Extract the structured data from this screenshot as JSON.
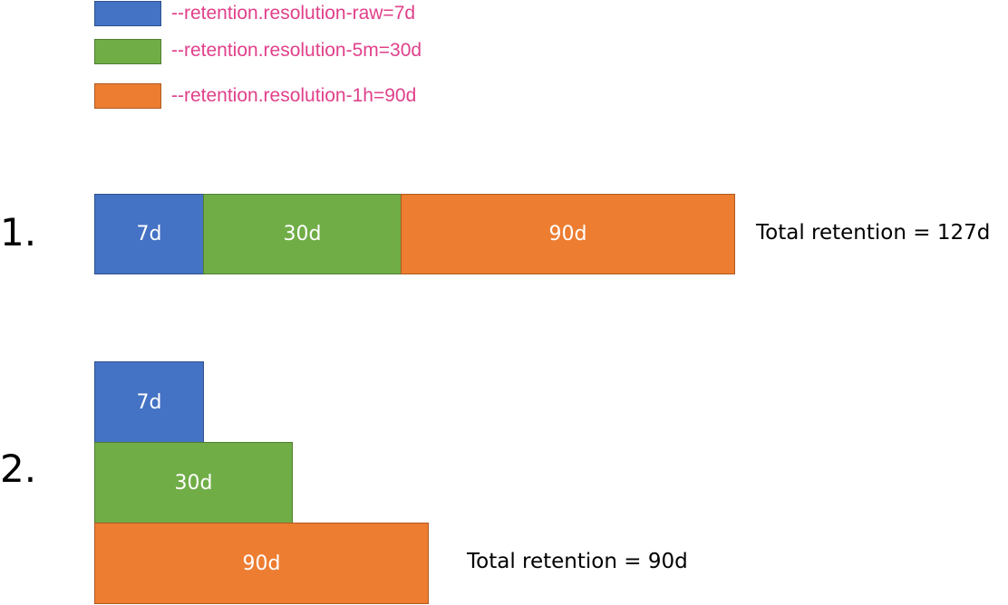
{
  "legend": {
    "items": [
      {
        "label": "--retention.resolution-raw=7d",
        "color": "#4472c4"
      },
      {
        "label": "--retention.resolution-5m=30d",
        "color": "#70ad47"
      },
      {
        "label": "--retention.resolution-1h=90d",
        "color": "#ed7d31"
      }
    ]
  },
  "scenario1": {
    "number": "1.",
    "segments": [
      {
        "label": "7d",
        "days": 7
      },
      {
        "label": "30d",
        "days": 30
      },
      {
        "label": "90d",
        "days": 90
      }
    ],
    "total": "Total retention = 127d"
  },
  "scenario2": {
    "number": "2.",
    "segments": [
      {
        "label": "7d",
        "days": 7
      },
      {
        "label": "30d",
        "days": 30
      },
      {
        "label": "90d",
        "days": 90
      }
    ],
    "total": "Total retention = 90d"
  }
}
